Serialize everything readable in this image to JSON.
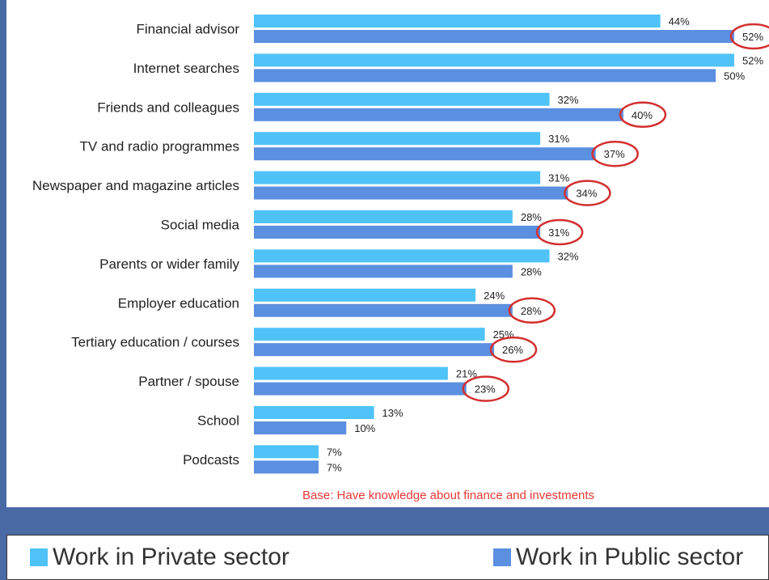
{
  "chart_data": {
    "type": "bar",
    "orientation": "horizontal",
    "categories": [
      "Financial advisor",
      "Internet searches",
      "Friends and colleagues",
      "TV and radio programmes",
      "Newspaper and magazine articles",
      "Social media",
      "Parents or wider family",
      "Employer education",
      "Tertiary education / courses",
      "Partner / spouse",
      "School",
      "Podcasts"
    ],
    "series": [
      {
        "name": "Work in Private sector",
        "color": "#4fc3f7",
        "values": [
          44,
          52,
          32,
          31,
          31,
          28,
          32,
          24,
          25,
          21,
          13,
          7
        ],
        "labels": [
          "44%",
          "52%",
          "32%",
          "31%",
          "31%",
          "28%",
          "32%",
          "24%",
          "25%",
          "21%",
          "13%",
          "7%"
        ]
      },
      {
        "name": "Work in Public sector",
        "color": "#5b8fe0",
        "values": [
          52,
          50,
          40,
          37,
          34,
          31,
          28,
          28,
          26,
          23,
          10,
          7
        ],
        "labels": [
          "52%",
          "50%",
          "40%",
          "37%",
          "34%",
          "31%",
          "28%",
          "28%",
          "26%",
          "23%",
          "10%",
          "7%"
        ],
        "circled": [
          true,
          false,
          true,
          true,
          true,
          true,
          false,
          true,
          true,
          true,
          false,
          false
        ]
      }
    ],
    "xlim": [
      0,
      52
    ],
    "grid": false,
    "legend": "bottom",
    "annotation": "Base: Have knowledge about finance and investments",
    "annotation_color": "#e53935",
    "circle_color": "#d32f2f"
  },
  "legend": {
    "private_label": "Work in Private sector",
    "public_label": "Work in Public sector"
  }
}
